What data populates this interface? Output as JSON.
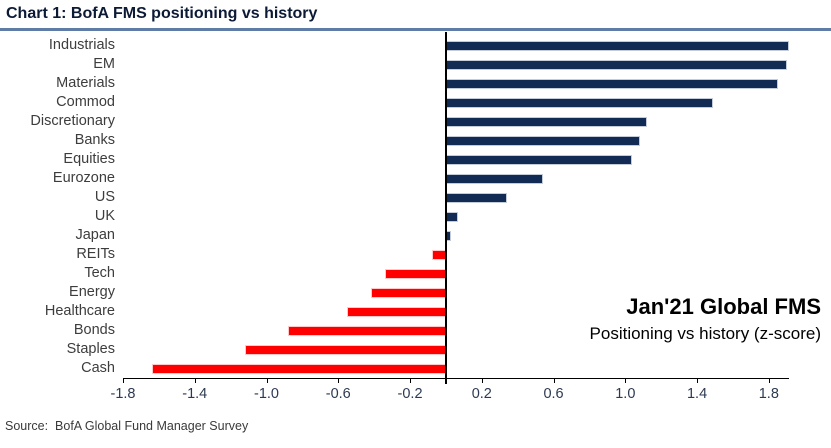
{
  "header": {
    "title": "Chart 1: BofA FMS positioning vs history"
  },
  "annotation": {
    "line1": "Jan'21 Global FMS",
    "line2": "Positioning vs history (z-score)"
  },
  "footer": {
    "source": "Source:  BofA Global Fund Manager Survey"
  },
  "colors": {
    "positive_bar": "#112b54",
    "negative_bar": "#ff0000",
    "title_rule": "#5f7ca6",
    "axis": "#000000",
    "title_text": "#0c1a36",
    "tick_text": "#2e3950",
    "category_text": "#3d3d3d"
  },
  "chart_data": {
    "type": "bar",
    "orientation": "horizontal",
    "title": "Chart 1: BofA FMS positioning vs history",
    "xlabel": "z-score",
    "ylabel": "",
    "categories": [
      "Industrials",
      "EM",
      "Materials",
      "Commod",
      "Discretionary",
      "Banks",
      "Equities",
      "Eurozone",
      "US",
      "UK",
      "Japan",
      "REITs",
      "Tech",
      "Energy",
      "Healthcare",
      "Bonds",
      "Staples",
      "Cash"
    ],
    "values": [
      1.91,
      1.9,
      1.85,
      1.49,
      1.12,
      1.08,
      1.04,
      0.54,
      0.34,
      0.07,
      0.03,
      -0.08,
      -0.34,
      -0.42,
      -0.55,
      -0.88,
      -1.12,
      -1.64
    ],
    "xlim": [
      -1.8,
      1.91
    ],
    "x_ticks": [
      -1.8,
      -1.4,
      -1.0,
      -0.6,
      -0.2,
      0.2,
      0.6,
      1.0,
      1.4,
      1.8
    ],
    "x_tick_labels": [
      "-1.8",
      "-1.4",
      "-1.0",
      "-0.6",
      "-0.2",
      "0.2",
      "0.6",
      "1.0",
      "1.4",
      "1.8"
    ],
    "grid": false,
    "legend": false,
    "annotation": [
      "Jan'21 Global FMS",
      "Positioning vs history (z-score)"
    ]
  }
}
